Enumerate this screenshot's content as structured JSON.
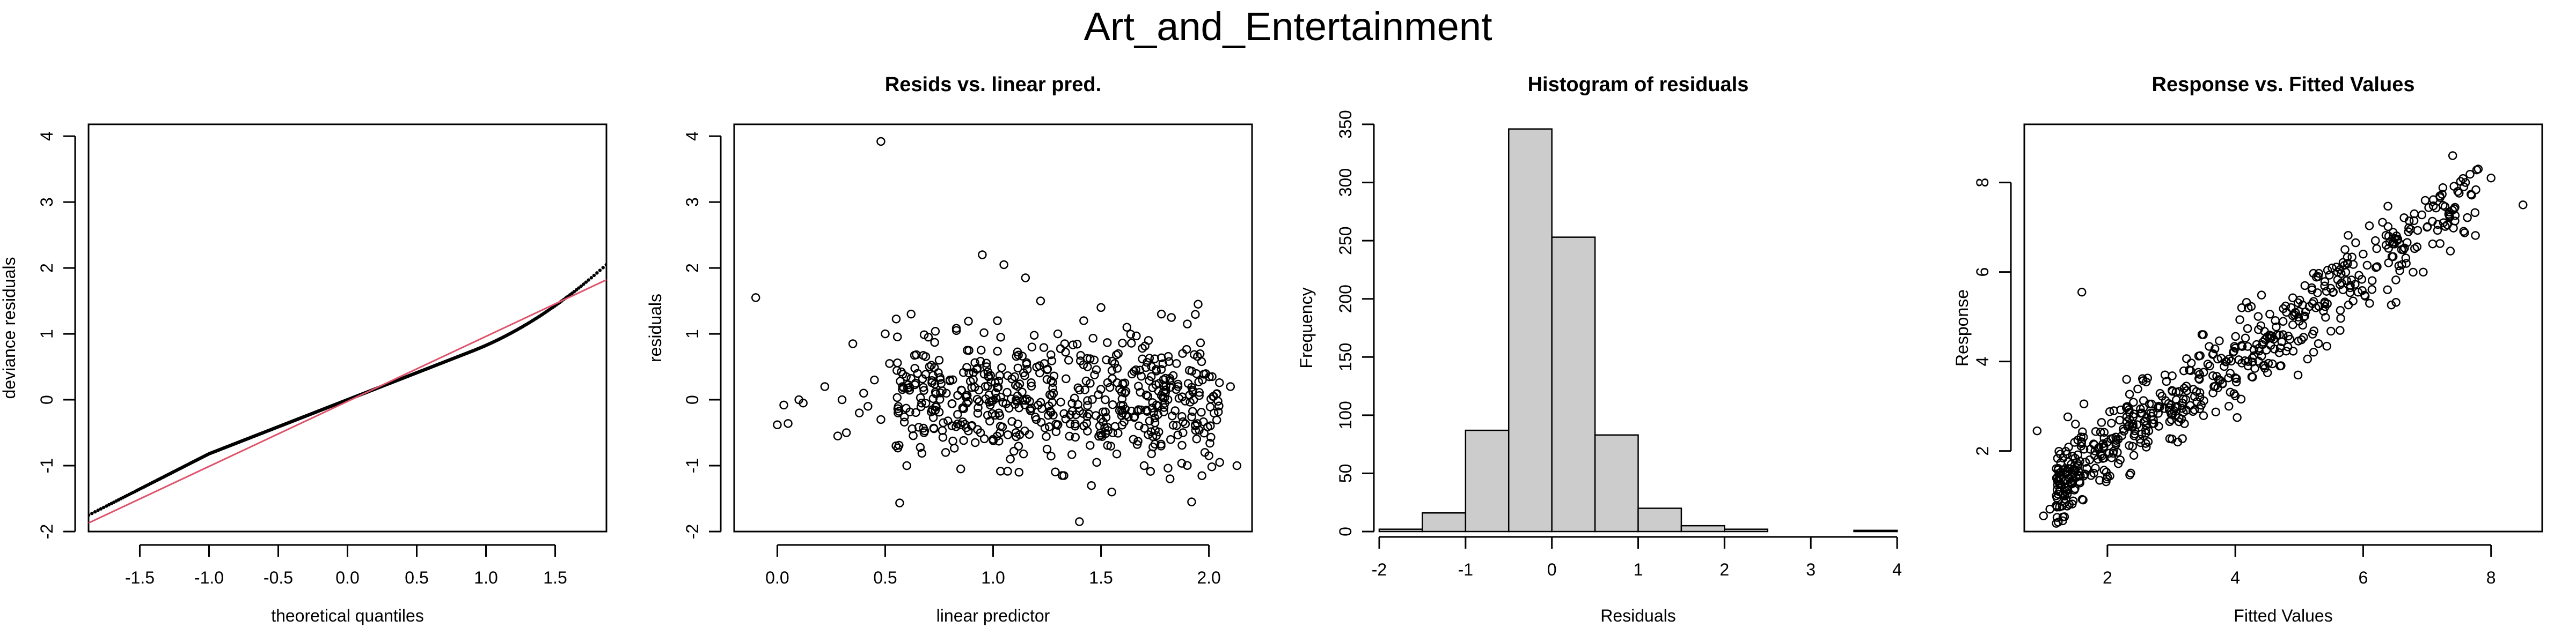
{
  "figure": {
    "title": "Art_and_Entertainment"
  },
  "chart_data": [
    {
      "type": "scatter",
      "title": "",
      "xlabel": "theoretical quantiles",
      "ylabel": "deviance residuals",
      "xlim": [
        -1.87,
        1.87
      ],
      "ylim": [
        -2.0,
        4.18
      ],
      "xticks": [
        "-1.5",
        "-1.0",
        "-0.5",
        "0.0",
        "0.5",
        "1.0",
        "1.5"
      ],
      "yticks": [
        "-2",
        "-1",
        "0",
        "1",
        "2",
        "3",
        "4"
      ],
      "series": [
        {
          "role": "qq-points",
          "marker": "dot"
        },
        {
          "role": "reference-line",
          "color": "#df536b",
          "line": [
            [
              -1.87,
              -1.87
            ],
            [
              1.87,
              1.82
            ]
          ]
        }
      ]
    },
    {
      "type": "scatter",
      "title": "Resids vs. linear pred.",
      "xlabel": "linear predictor",
      "ylabel": "residuals",
      "xlim": [
        -0.2,
        2.2
      ],
      "ylim": [
        -2.0,
        4.18
      ],
      "xticks": [
        "0.0",
        "0.5",
        "1.0",
        "1.5",
        "2.0"
      ],
      "yticks": [
        "-2",
        "-1",
        "0",
        "1",
        "2",
        "3",
        "4"
      ],
      "points": [
        [
          -0.1,
          1.55
        ],
        [
          0.48,
          3.92
        ],
        [
          0.0,
          -0.38
        ],
        [
          0.05,
          -0.36
        ],
        [
          0.03,
          -0.08
        ],
        [
          0.1,
          0.0
        ],
        [
          0.12,
          -0.05
        ],
        [
          0.22,
          0.2
        ],
        [
          0.28,
          -0.55
        ],
        [
          0.3,
          0.0
        ],
        [
          0.32,
          -0.5
        ],
        [
          0.35,
          0.85
        ],
        [
          0.38,
          -0.2
        ],
        [
          0.4,
          0.1
        ],
        [
          0.42,
          -0.1
        ],
        [
          0.45,
          0.3
        ],
        [
          0.48,
          -0.3
        ],
        [
          0.5,
          1.0
        ],
        [
          0.52,
          0.55
        ],
        [
          0.55,
          -0.7
        ],
        [
          0.58,
          0.2
        ],
        [
          0.6,
          -1.0
        ],
        [
          0.62,
          1.3
        ],
        [
          0.65,
          0.4
        ],
        [
          0.68,
          -0.5
        ],
        [
          0.7,
          0.95
        ],
        [
          0.72,
          -0.15
        ],
        [
          0.75,
          0.6
        ],
        [
          0.78,
          -0.8
        ],
        [
          0.8,
          0.3
        ],
        [
          0.85,
          -1.05
        ],
        [
          0.88,
          0.75
        ],
        [
          0.9,
          -0.4
        ],
        [
          0.95,
          2.2
        ],
        [
          0.97,
          0.5
        ],
        [
          1.0,
          -0.6
        ],
        [
          1.02,
          1.2
        ],
        [
          1.05,
          2.05
        ],
        [
          1.08,
          -0.9
        ],
        [
          1.1,
          0.35
        ],
        [
          1.12,
          -1.1
        ],
        [
          1.15,
          1.85
        ],
        [
          1.18,
          0.8
        ],
        [
          1.2,
          -0.3
        ],
        [
          1.22,
          1.5
        ],
        [
          1.25,
          -0.75
        ],
        [
          1.28,
          0.1
        ],
        [
          1.3,
          1.0
        ],
        [
          1.32,
          -1.15
        ],
        [
          1.35,
          0.6
        ],
        [
          1.38,
          -0.4
        ],
        [
          1.4,
          -1.85
        ],
        [
          1.42,
          1.2
        ],
        [
          1.45,
          0.25
        ],
        [
          1.48,
          -0.95
        ],
        [
          1.5,
          1.4
        ],
        [
          1.52,
          0.0
        ],
        [
          1.55,
          -1.4
        ],
        [
          1.58,
          0.7
        ],
        [
          1.6,
          -0.2
        ],
        [
          1.62,
          1.1
        ],
        [
          1.65,
          -0.6
        ],
        [
          1.68,
          0.45
        ],
        [
          1.7,
          -1.0
        ],
        [
          1.72,
          0.9
        ],
        [
          1.75,
          -0.35
        ],
        [
          1.78,
          1.3
        ],
        [
          1.8,
          0.15
        ],
        [
          1.82,
          -1.2
        ],
        [
          1.85,
          0.55
        ],
        [
          1.88,
          -0.5
        ],
        [
          1.9,
          1.15
        ],
        [
          1.92,
          -1.55
        ],
        [
          1.95,
          1.45
        ],
        [
          1.97,
          0.3
        ],
        [
          2.0,
          -0.85
        ],
        [
          2.02,
          0.05
        ],
        [
          2.05,
          -0.95
        ],
        [
          2.1,
          0.2
        ],
        [
          2.13,
          -1.0
        ]
      ]
    },
    {
      "type": "bar",
      "title": "Histogram of residuals",
      "xlabel": "Residuals",
      "ylabel": "Frequency",
      "xlim": [
        -2,
        4
      ],
      "ylim": [
        0,
        350
      ],
      "xticks": [
        "-2",
        "-1",
        "0",
        "1",
        "2",
        "3",
        "4"
      ],
      "yticks": [
        "0",
        "50",
        "100",
        "150",
        "200",
        "250",
        "300",
        "350"
      ],
      "bin_edges": [
        -2,
        -1.5,
        -1,
        -0.5,
        0,
        0.5,
        1,
        1.5,
        2,
        2.5,
        3,
        3.5,
        4
      ],
      "values": [
        2,
        16,
        87,
        346,
        253,
        83,
        20,
        5,
        2,
        0,
        0,
        1
      ],
      "fill": "#cccccc"
    },
    {
      "type": "scatter",
      "title": "Response vs. Fitted Values",
      "xlabel": "Fitted Values",
      "ylabel": "Response",
      "xlim": [
        0.7,
        8.8
      ],
      "ylim": [
        0.2,
        9.3
      ],
      "xticks": [
        "2",
        "4",
        "6",
        "8"
      ],
      "yticks": [
        "2",
        "4",
        "6",
        "8"
      ],
      "points": [
        [
          1.0,
          0.55
        ],
        [
          1.1,
          0.7
        ],
        [
          1.2,
          1.0
        ],
        [
          1.4,
          1.4
        ],
        [
          1.6,
          5.55
        ],
        [
          1.8,
          1.9
        ],
        [
          2.0,
          2.2
        ],
        [
          2.2,
          1.8
        ],
        [
          2.4,
          2.6
        ],
        [
          2.6,
          2.4
        ],
        [
          2.8,
          3.0
        ],
        [
          3.0,
          2.7
        ],
        [
          3.2,
          3.4
        ],
        [
          3.4,
          3.1
        ],
        [
          3.6,
          3.9
        ],
        [
          3.8,
          3.5
        ],
        [
          4.0,
          4.3
        ],
        [
          4.2,
          3.9
        ],
        [
          4.4,
          4.8
        ],
        [
          4.6,
          4.5
        ],
        [
          4.8,
          5.1
        ],
        [
          5.0,
          4.9
        ],
        [
          5.2,
          5.6
        ],
        [
          5.4,
          5.3
        ],
        [
          5.6,
          6.0
        ],
        [
          5.8,
          5.7
        ],
        [
          6.0,
          6.4
        ],
        [
          6.2,
          6.1
        ],
        [
          6.4,
          6.8
        ],
        [
          6.6,
          6.5
        ],
        [
          6.8,
          7.3
        ],
        [
          7.0,
          7.0
        ],
        [
          7.2,
          7.7
        ],
        [
          7.4,
          8.6
        ],
        [
          7.6,
          8.0
        ],
        [
          7.8,
          8.3
        ],
        [
          8.0,
          8.1
        ],
        [
          8.5,
          7.5
        ],
        [
          2.3,
          3.6
        ],
        [
          3.1,
          2.2
        ],
        [
          4.1,
          5.2
        ],
        [
          4.7,
          3.9
        ],
        [
          5.3,
          4.4
        ],
        [
          6.1,
          5.3
        ],
        [
          3.5,
          4.6
        ],
        [
          2.9,
          3.7
        ],
        [
          1.5,
          2.6
        ],
        [
          0.9,
          2.45
        ],
        [
          2.1,
          2.9
        ],
        [
          3.9,
          3.0
        ]
      ]
    }
  ]
}
